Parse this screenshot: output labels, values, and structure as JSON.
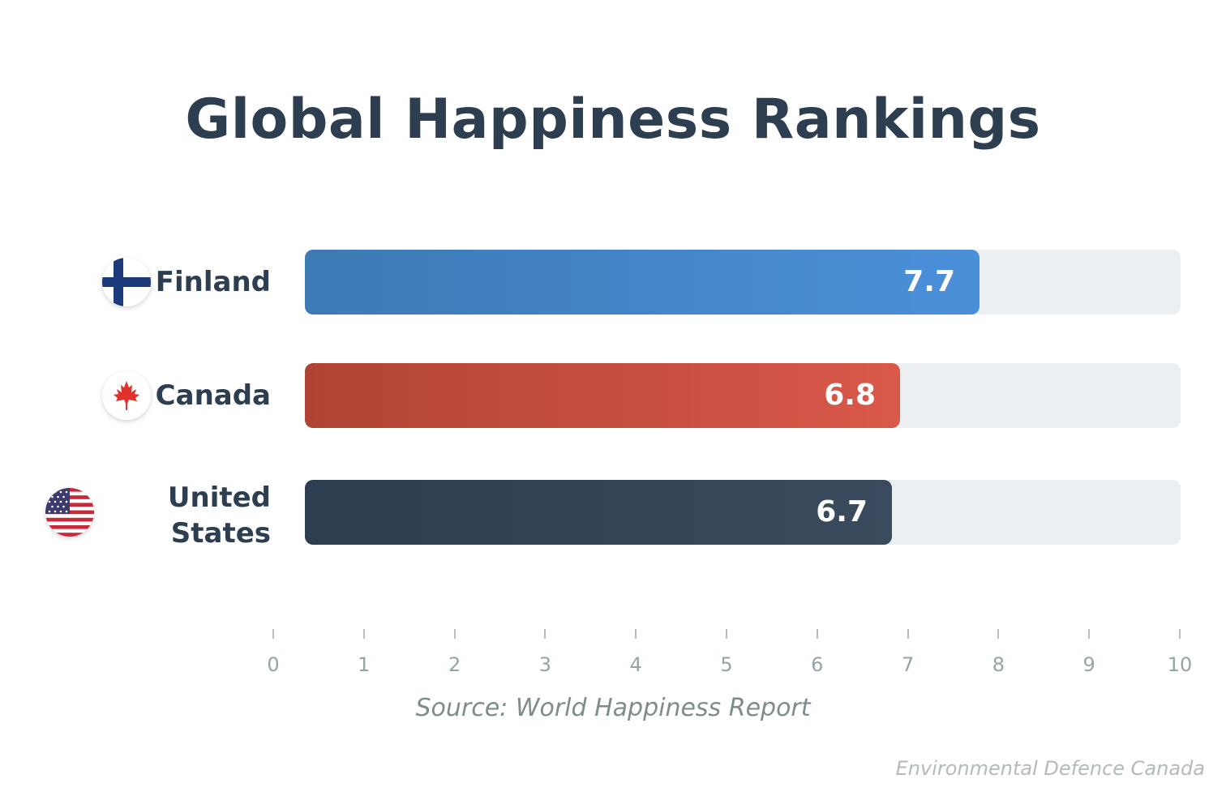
{
  "chart_data": {
    "type": "bar",
    "orientation": "horizontal",
    "title": "Global Happiness Rankings",
    "categories": [
      "Finland",
      "Canada",
      "United States"
    ],
    "values": [
      7.7,
      6.8,
      6.7
    ],
    "value_labels": [
      "7.7",
      "6.8",
      "6.7"
    ],
    "xlim": [
      0,
      10
    ],
    "x_ticks": [
      "0",
      "1",
      "2",
      "3",
      "4",
      "5",
      "6",
      "7",
      "8",
      "9",
      "10"
    ],
    "colors": {
      "Finland": [
        "#3d7ab5",
        "#4a90d9"
      ],
      "Canada": [
        "#b04434",
        "#d9584a"
      ],
      "United States": [
        "#2c3e50",
        "#3a4b5e"
      ],
      "track": "#eceff1"
    },
    "flags": [
      "finland-flag-icon",
      "canada-flag-icon",
      "usa-flag-icon"
    ],
    "grid": false,
    "legend": "none"
  },
  "source": "Source: World Happiness Report",
  "footer": "Environmental Defence Canada"
}
